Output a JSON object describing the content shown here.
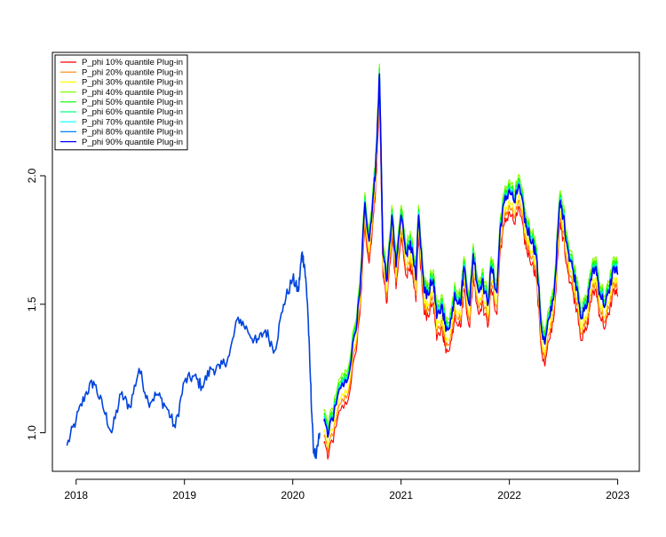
{
  "chart_data": {
    "type": "line",
    "title": "",
    "xlabel": "",
    "ylabel": "",
    "x_ticks": [
      {
        "year": 2018,
        "label": "2018"
      },
      {
        "year": 2019,
        "label": "2019"
      },
      {
        "year": 2020,
        "label": "2020"
      },
      {
        "year": 2021,
        "label": "2021"
      },
      {
        "year": 2022,
        "label": "2022"
      },
      {
        "year": 2023,
        "label": "2023"
      }
    ],
    "y_ticks": [
      {
        "value": 1.0,
        "label": "1.0"
      },
      {
        "value": 1.5,
        "label": "1.5"
      },
      {
        "value": 2.0,
        "label": "2.0"
      }
    ],
    "xlim": [
      "2017-10-13",
      "2023-03-15"
    ],
    "ylim": [
      0.85,
      2.48
    ],
    "grid": false,
    "legend_position": "top-left",
    "common_path": {
      "t": [
        "2017-12-01",
        "2018-01-01",
        "2018-02-01",
        "2018-03-01",
        "2018-04-01",
        "2018-05-01",
        "2018-06-01",
        "2018-07-01",
        "2018-08-01",
        "2018-09-01",
        "2018-10-01",
        "2018-11-01",
        "2018-12-01",
        "2019-01-01",
        "2019-02-01",
        "2019-03-01",
        "2019-04-01",
        "2019-05-01",
        "2019-06-01",
        "2019-07-01",
        "2019-08-01",
        "2019-09-01",
        "2019-10-01",
        "2019-11-01",
        "2019-12-01",
        "2020-01-01",
        "2020-01-20",
        "2020-02-01",
        "2020-02-10",
        "2020-02-20",
        "2020-03-01",
        "2020-03-10",
        "2020-03-20",
        "2020-04-01"
      ],
      "v": [
        0.95,
        1.05,
        1.15,
        1.2,
        1.1,
        1.0,
        1.15,
        1.1,
        1.25,
        1.12,
        1.15,
        1.1,
        1.02,
        1.2,
        1.22,
        1.18,
        1.25,
        1.25,
        1.3,
        1.45,
        1.4,
        1.35,
        1.4,
        1.32,
        1.5,
        1.6,
        1.55,
        1.7,
        1.65,
        1.5,
        1.2,
        0.95,
        0.9,
        1.0
      ]
    },
    "base_path": {
      "t": [
        "2020-04-15",
        "2020-05-01",
        "2020-06-01",
        "2020-07-01",
        "2020-08-01",
        "2020-08-15",
        "2020-09-01",
        "2020-09-15",
        "2020-10-01",
        "2020-10-10",
        "2020-10-20",
        "2020-11-01",
        "2020-11-15",
        "2020-12-01",
        "2020-12-15",
        "2021-01-01",
        "2021-01-20",
        "2021-02-01",
        "2021-02-20",
        "2021-03-01",
        "2021-03-20",
        "2021-04-01",
        "2021-04-20",
        "2021-05-01",
        "2021-05-20",
        "2021-06-01",
        "2021-06-20",
        "2021-07-01",
        "2021-07-20",
        "2021-08-01",
        "2021-08-20",
        "2021-09-01",
        "2021-09-20",
        "2021-10-01",
        "2021-10-20",
        "2021-11-01",
        "2021-11-20",
        "2021-12-01",
        "2021-12-15",
        "2022-01-01",
        "2022-01-20",
        "2022-02-01",
        "2022-02-20",
        "2022-03-01",
        "2022-03-20",
        "2022-04-01",
        "2022-04-20",
        "2022-05-01",
        "2022-05-15",
        "2022-06-01",
        "2022-06-20",
        "2022-07-01",
        "2022-07-20",
        "2022-08-01",
        "2022-08-20",
        "2022-09-01",
        "2022-09-20",
        "2022-10-01",
        "2022-10-20",
        "2022-11-01",
        "2022-11-20",
        "2022-12-01",
        "2022-12-20",
        "2023-01-01"
      ],
      "v": [
        1.05,
        1.0,
        1.15,
        1.2,
        1.4,
        1.55,
        1.9,
        1.75,
        1.95,
        2.1,
        2.4,
        1.7,
        1.6,
        1.85,
        1.65,
        1.85,
        1.7,
        1.75,
        1.6,
        1.85,
        1.55,
        1.55,
        1.6,
        1.45,
        1.5,
        1.4,
        1.45,
        1.55,
        1.5,
        1.65,
        1.5,
        1.7,
        1.55,
        1.6,
        1.5,
        1.65,
        1.55,
        1.8,
        1.9,
        1.95,
        1.9,
        1.97,
        1.85,
        1.8,
        1.75,
        1.7,
        1.4,
        1.35,
        1.45,
        1.55,
        1.9,
        1.85,
        1.7,
        1.65,
        1.55,
        1.45,
        1.5,
        1.6,
        1.65,
        1.55,
        1.5,
        1.55,
        1.65,
        1.62
      ]
    },
    "series": [
      {
        "name": "P_phi 10% quantile Plug-in",
        "color": "#ff0000",
        "offset": -0.09
      },
      {
        "name": "P_phi 20% quantile Plug-in",
        "color": "#ff8000",
        "offset": -0.065
      },
      {
        "name": "P_phi 30% quantile Plug-in",
        "color": "#ffff00",
        "offset": -0.045
      },
      {
        "name": "P_phi 40% quantile Plug-in",
        "color": "#80ff00",
        "offset": 0.035
      },
      {
        "name": "P_phi 50% quantile Plug-in",
        "color": "#00ff00",
        "offset": 0.02
      },
      {
        "name": "P_phi 60% quantile Plug-in",
        "color": "#00ff80",
        "offset": 0.01
      },
      {
        "name": "P_phi 70% quantile Plug-in",
        "color": "#00ffff",
        "offset": 0.005
      },
      {
        "name": "P_phi 80% quantile Plug-in",
        "color": "#0080ff",
        "offset": 0.0
      },
      {
        "name": "P_phi 90% quantile Plug-in",
        "color": "#0000ff",
        "offset": -0.005
      }
    ]
  }
}
